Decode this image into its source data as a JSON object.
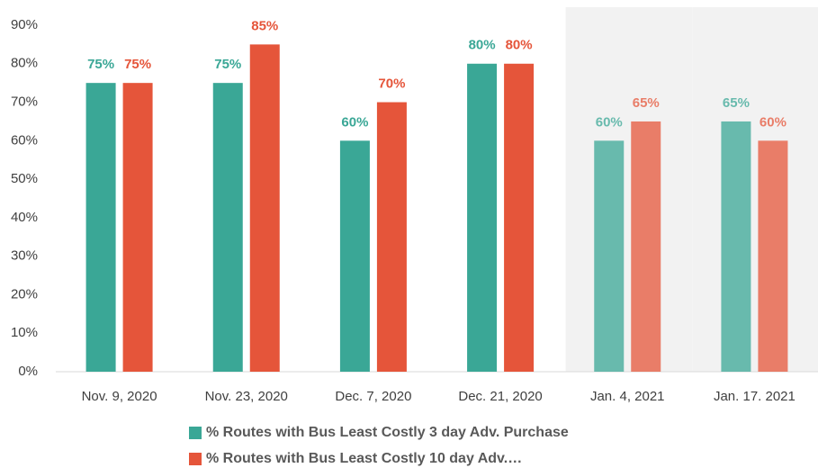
{
  "chart_data": {
    "type": "bar",
    "categories": [
      "Nov. 9, 2020",
      "Nov. 23, 2020",
      "Dec. 7, 2020",
      "Dec. 21, 2020",
      "Jan. 4, 2021",
      "Jan. 17. 2021"
    ],
    "series": [
      {
        "name": "% Routes with Bus Least Costly 3 day Adv. Purchase",
        "color": "#3aa796",
        "values": [
          75,
          75,
          60,
          80,
          60,
          65
        ],
        "value_labels": [
          "75%",
          "75%",
          "60%",
          "80%",
          "60%",
          "65%"
        ]
      },
      {
        "name": "% Routes with Bus Least Costly 10 day Adv.…",
        "color": "#e5553a",
        "values": [
          75,
          85,
          70,
          80,
          65,
          60
        ],
        "value_labels": [
          "75%",
          "85%",
          "70%",
          "80%",
          "65%",
          "60%"
        ]
      }
    ],
    "shaded_categories": [
      4,
      5
    ],
    "ylim": [
      0,
      90
    ],
    "yticks": [
      {
        "value": 0,
        "label": "0%"
      },
      {
        "value": 10,
        "label": "10%"
      },
      {
        "value": 20,
        "label": "20%"
      },
      {
        "value": 30,
        "label": "30%"
      },
      {
        "value": 40,
        "label": "40%"
      },
      {
        "value": 50,
        "label": "50%"
      },
      {
        "value": 60,
        "label": "60%"
      },
      {
        "value": 70,
        "label": "70%"
      },
      {
        "value": 80,
        "label": "80%"
      },
      {
        "value": 90,
        "label": "90%"
      }
    ],
    "grid": false,
    "legend": "bottom"
  }
}
